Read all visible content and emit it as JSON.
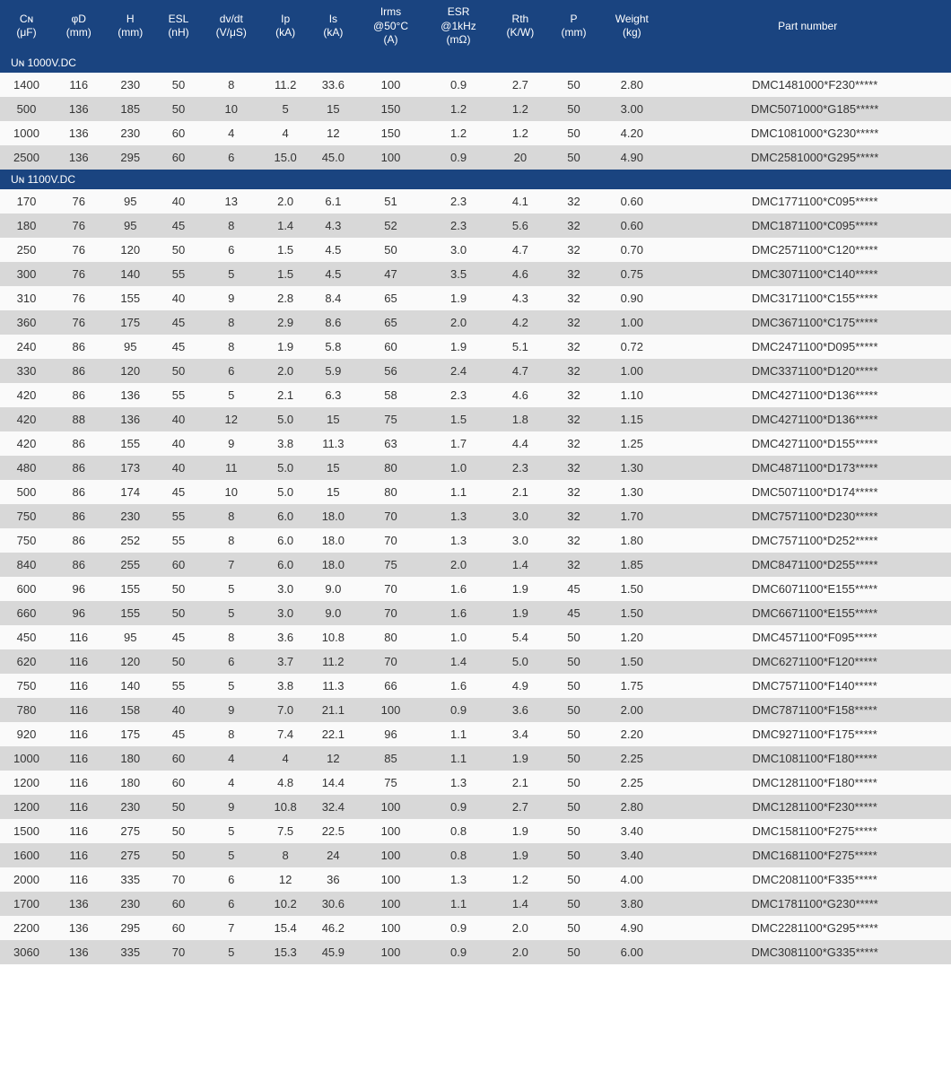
{
  "colors": {
    "header_bg": "#1a4480",
    "header_text": "#ffffff",
    "row_odd": "#fafafa",
    "row_even": "#d8d8d8",
    "text": "#333333"
  },
  "headers": [
    {
      "line1": "Cɴ",
      "line2": "(μF)"
    },
    {
      "line1": "φD",
      "line2": "(mm)"
    },
    {
      "line1": "H",
      "line2": "(mm)"
    },
    {
      "line1": "ESL",
      "line2": "(nH)"
    },
    {
      "line1": "dv/dt",
      "line2": "(V/μS)"
    },
    {
      "line1": "Ip",
      "line2": "(kA)"
    },
    {
      "line1": "Is",
      "line2": "(kA)"
    },
    {
      "line1": "Irms",
      "line2": "@50°C",
      "line3": "(A)"
    },
    {
      "line1": "ESR",
      "line2": "@1kHz",
      "line3": "(mΩ)"
    },
    {
      "line1": "Rth",
      "line2": "(K/W)"
    },
    {
      "line1": "P",
      "line2": "(mm)"
    },
    {
      "line1": "Weight",
      "line2": "(kg)"
    },
    {
      "line1": "Part number",
      "line2": ""
    }
  ],
  "sections": [
    {
      "title": "Uɴ 1000V.DC",
      "rows": [
        [
          "1400",
          "116",
          "230",
          "50",
          "8",
          "11.2",
          "33.6",
          "100",
          "0.9",
          "2.7",
          "50",
          "2.80",
          "DMC1481000*F230*****"
        ],
        [
          "500",
          "136",
          "185",
          "50",
          "10",
          "5",
          "15",
          "150",
          "1.2",
          "1.2",
          "50",
          "3.00",
          "DMC5071000*G185*****"
        ],
        [
          "1000",
          "136",
          "230",
          "60",
          "4",
          "4",
          "12",
          "150",
          "1.2",
          "1.2",
          "50",
          "4.20",
          "DMC1081000*G230*****"
        ],
        [
          "2500",
          "136",
          "295",
          "60",
          "6",
          "15.0",
          "45.0",
          "100",
          "0.9",
          "20",
          "50",
          "4.90",
          "DMC2581000*G295*****"
        ]
      ]
    },
    {
      "title": "Uɴ 1100V.DC",
      "rows": [
        [
          "170",
          "76",
          "95",
          "40",
          "13",
          "2.0",
          "6.1",
          "51",
          "2.3",
          "4.1",
          "32",
          "0.60",
          "DMC1771100*C095*****"
        ],
        [
          "180",
          "76",
          "95",
          "45",
          "8",
          "1.4",
          "4.3",
          "52",
          "2.3",
          "5.6",
          "32",
          "0.60",
          "DMC1871100*C095*****"
        ],
        [
          "250",
          "76",
          "120",
          "50",
          "6",
          "1.5",
          "4.5",
          "50",
          "3.0",
          "4.7",
          "32",
          "0.70",
          "DMC2571100*C120*****"
        ],
        [
          "300",
          "76",
          "140",
          "55",
          "5",
          "1.5",
          "4.5",
          "47",
          "3.5",
          "4.6",
          "32",
          "0.75",
          "DMC3071100*C140*****"
        ],
        [
          "310",
          "76",
          "155",
          "40",
          "9",
          "2.8",
          "8.4",
          "65",
          "1.9",
          "4.3",
          "32",
          "0.90",
          "DMC3171100*C155*****"
        ],
        [
          "360",
          "76",
          "175",
          "45",
          "8",
          "2.9",
          "8.6",
          "65",
          "2.0",
          "4.2",
          "32",
          "1.00",
          "DMC3671100*C175*****"
        ],
        [
          "240",
          "86",
          "95",
          "45",
          "8",
          "1.9",
          "5.8",
          "60",
          "1.9",
          "5.1",
          "32",
          "0.72",
          "DMC2471100*D095*****"
        ],
        [
          "330",
          "86",
          "120",
          "50",
          "6",
          "2.0",
          "5.9",
          "56",
          "2.4",
          "4.7",
          "32",
          "1.00",
          "DMC3371100*D120*****"
        ],
        [
          "420",
          "86",
          "136",
          "55",
          "5",
          "2.1",
          "6.3",
          "58",
          "2.3",
          "4.6",
          "32",
          "1.10",
          "DMC4271100*D136*****"
        ],
        [
          "420",
          "88",
          "136",
          "40",
          "12",
          "5.0",
          "15",
          "75",
          "1.5",
          "1.8",
          "32",
          "1.15",
          "DMC4271100*D136*****"
        ],
        [
          "420",
          "86",
          "155",
          "40",
          "9",
          "3.8",
          "11.3",
          "63",
          "1.7",
          "4.4",
          "32",
          "1.25",
          "DMC4271100*D155*****"
        ],
        [
          "480",
          "86",
          "173",
          "40",
          "11",
          "5.0",
          "15",
          "80",
          "1.0",
          "2.3",
          "32",
          "1.30",
          "DMC4871100*D173*****"
        ],
        [
          "500",
          "86",
          "174",
          "45",
          "10",
          "5.0",
          "15",
          "80",
          "1.1",
          "2.1",
          "32",
          "1.30",
          "DMC5071100*D174*****"
        ],
        [
          "750",
          "86",
          "230",
          "55",
          "8",
          "6.0",
          "18.0",
          "70",
          "1.3",
          "3.0",
          "32",
          "1.70",
          "DMC7571100*D230*****"
        ],
        [
          "750",
          "86",
          "252",
          "55",
          "8",
          "6.0",
          "18.0",
          "70",
          "1.3",
          "3.0",
          "32",
          "1.80",
          "DMC7571100*D252*****"
        ],
        [
          "840",
          "86",
          "255",
          "60",
          "7",
          "6.0",
          "18.0",
          "75",
          "2.0",
          "1.4",
          "32",
          "1.85",
          "DMC8471100*D255*****"
        ],
        [
          "600",
          "96",
          "155",
          "50",
          "5",
          "3.0",
          "9.0",
          "70",
          "1.6",
          "1.9",
          "45",
          "1.50",
          "DMC6071100*E155*****"
        ],
        [
          "660",
          "96",
          "155",
          "50",
          "5",
          "3.0",
          "9.0",
          "70",
          "1.6",
          "1.9",
          "45",
          "1.50",
          "DMC6671100*E155*****"
        ],
        [
          "450",
          "116",
          "95",
          "45",
          "8",
          "3.6",
          "10.8",
          "80",
          "1.0",
          "5.4",
          "50",
          "1.20",
          "DMC4571100*F095*****"
        ],
        [
          "620",
          "116",
          "120",
          "50",
          "6",
          "3.7",
          "11.2",
          "70",
          "1.4",
          "5.0",
          "50",
          "1.50",
          "DMC6271100*F120*****"
        ],
        [
          "750",
          "116",
          "140",
          "55",
          "5",
          "3.8",
          "11.3",
          "66",
          "1.6",
          "4.9",
          "50",
          "1.75",
          "DMC7571100*F140*****"
        ],
        [
          "780",
          "116",
          "158",
          "40",
          "9",
          "7.0",
          "21.1",
          "100",
          "0.9",
          "3.6",
          "50",
          "2.00",
          "DMC7871100*F158*****"
        ],
        [
          "920",
          "116",
          "175",
          "45",
          "8",
          "7.4",
          "22.1",
          "96",
          "1.1",
          "3.4",
          "50",
          "2.20",
          "DMC9271100*F175*****"
        ],
        [
          "1000",
          "116",
          "180",
          "60",
          "4",
          "4",
          "12",
          "85",
          "1.1",
          "1.9",
          "50",
          "2.25",
          "DMC1081100*F180*****"
        ],
        [
          "1200",
          "116",
          "180",
          "60",
          "4",
          "4.8",
          "14.4",
          "75",
          "1.3",
          "2.1",
          "50",
          "2.25",
          "DMC1281100*F180*****"
        ],
        [
          "1200",
          "116",
          "230",
          "50",
          "9",
          "10.8",
          "32.4",
          "100",
          "0.9",
          "2.7",
          "50",
          "2.80",
          "DMC1281100*F230*****"
        ],
        [
          "1500",
          "116",
          "275",
          "50",
          "5",
          "7.5",
          "22.5",
          "100",
          "0.8",
          "1.9",
          "50",
          "3.40",
          "DMC1581100*F275*****"
        ],
        [
          "1600",
          "116",
          "275",
          "50",
          "5",
          "8",
          "24",
          "100",
          "0.8",
          "1.9",
          "50",
          "3.40",
          "DMC1681100*F275*****"
        ],
        [
          "2000",
          "116",
          "335",
          "70",
          "6",
          "12",
          "36",
          "100",
          "1.3",
          "1.2",
          "50",
          "4.00",
          "DMC2081100*F335*****"
        ],
        [
          "1700",
          "136",
          "230",
          "60",
          "6",
          "10.2",
          "30.6",
          "100",
          "1.1",
          "1.4",
          "50",
          "3.80",
          "DMC1781100*G230*****"
        ],
        [
          "2200",
          "136",
          "295",
          "60",
          "7",
          "15.4",
          "46.2",
          "100",
          "0.9",
          "2.0",
          "50",
          "4.90",
          "DMC2281100*G295*****"
        ],
        [
          "3060",
          "136",
          "335",
          "70",
          "5",
          "15.3",
          "45.9",
          "100",
          "0.9",
          "2.0",
          "50",
          "6.00",
          "DMC3081100*G335*****"
        ]
      ]
    }
  ]
}
